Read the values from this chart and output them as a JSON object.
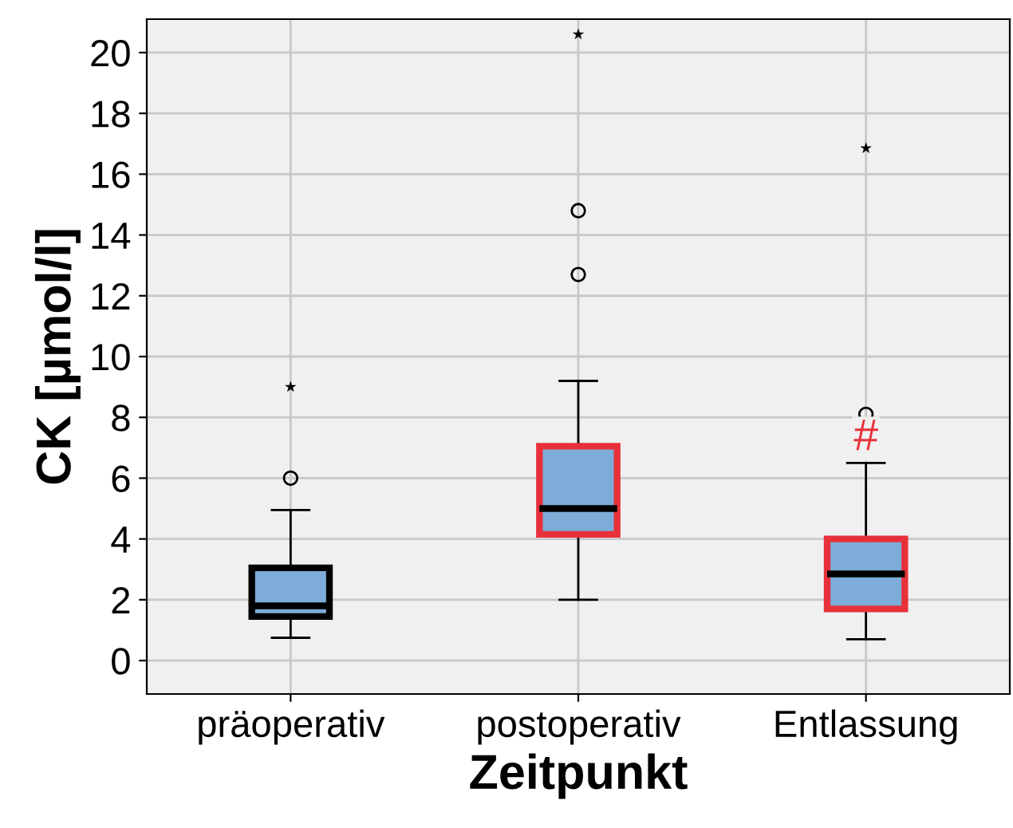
{
  "chart_data": {
    "type": "box",
    "xlabel": "Zeitpunkt",
    "ylabel": "CK [µmol/l]",
    "categories": [
      "präoperativ",
      "postoperativ",
      "Entlassung"
    ],
    "color": "#7eacd8",
    "colors": [
      "#000000",
      "#e8303a",
      "#e8303a"
    ],
    "boxes": [
      {
        "low": 0.75,
        "q1": 1.45,
        "median": 1.8,
        "q3": 3.05,
        "high": 4.95,
        "outliers": [
          6.0
        ]
      },
      {
        "low": 2.0,
        "q1": 4.15,
        "median": 5.0,
        "q3": 7.05,
        "high": 9.2,
        "outliers": [
          12.7,
          14.8
        ]
      },
      {
        "low": 0.7,
        "q1": 1.7,
        "median": 2.85,
        "q3": 4.0,
        "high": 6.5,
        "outliers": [
          8.1
        ]
      }
    ],
    "series": [
      {
        "type": "scatter",
        "marker": "star",
        "color": "#000000",
        "x": [
          "präoperativ",
          "postoperativ",
          "Entlassung"
        ],
        "values": [
          9.0,
          20.6,
          16.85
        ]
      }
    ],
    "annotations": [
      "#"
    ],
    "ylim": [
      -1.1,
      21.1
    ],
    "yticks": [
      0,
      2,
      4,
      6,
      8,
      10,
      12,
      14,
      16,
      18,
      20
    ],
    "grid": true
  }
}
